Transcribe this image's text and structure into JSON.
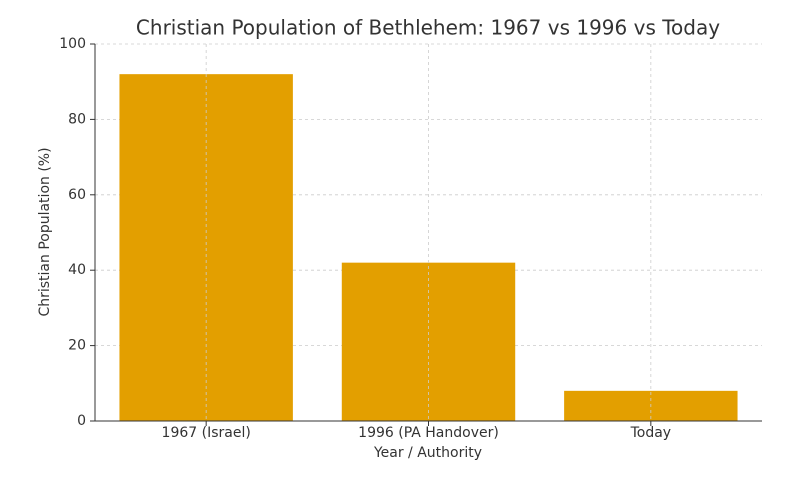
{
  "chart_data": {
    "type": "bar",
    "title": "Christian Population of Bethlehem: 1967 vs 1996 vs Today",
    "x_label": "Year / Authority",
    "y_label": "Christian Population (%)",
    "categories": [
      "1967 (Israel)",
      "1996 (PA Handover)",
      "Today"
    ],
    "values": [
      92,
      42,
      8
    ],
    "color": "#e39f00",
    "ylim": [
      0,
      100
    ],
    "yticks": [
      0,
      20,
      40,
      60,
      80,
      100
    ],
    "grid": true
  }
}
